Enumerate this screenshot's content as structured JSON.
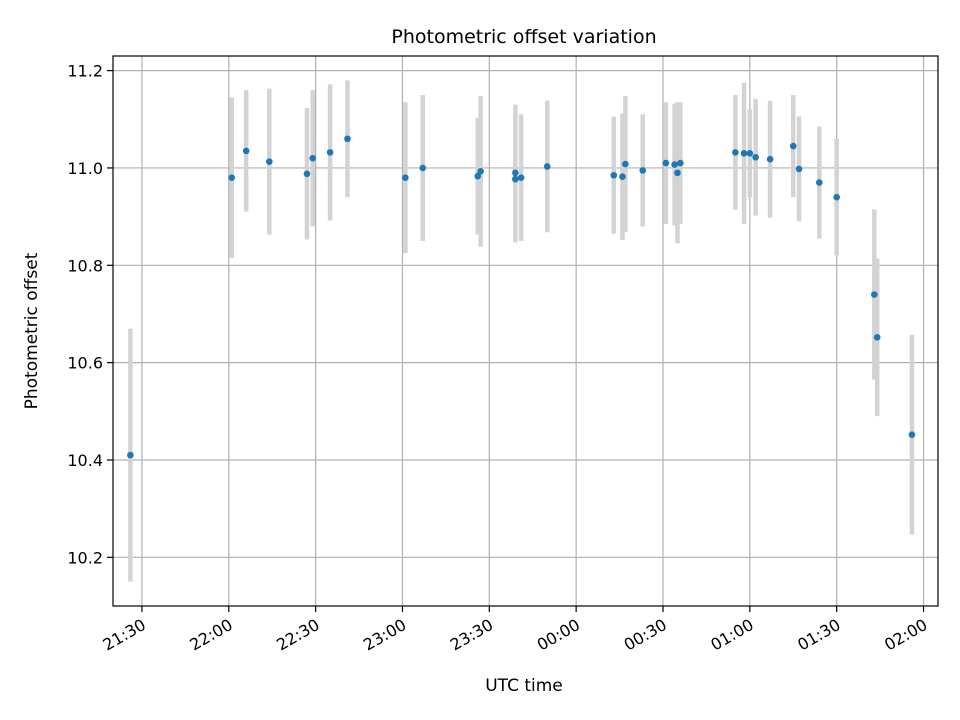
{
  "chart_data": {
    "type": "scatter",
    "title": "Photometric offset variation",
    "xlabel": "UTC time",
    "ylabel": "Photometric offset",
    "grid": true,
    "x_ticks": [
      "21:30",
      "22:00",
      "22:30",
      "23:00",
      "23:30",
      "00:00",
      "00:30",
      "01:00",
      "01:30",
      "02:00"
    ],
    "y_ticks": [
      "10.2",
      "10.4",
      "10.6",
      "10.8",
      "11.0",
      "11.2"
    ],
    "ylim": [
      10.1,
      11.23
    ],
    "xlim": [
      "21:20",
      "02:05"
    ],
    "colors": {
      "point": "#1f77b4",
      "errorbar": "#d3d3d3",
      "grid": "#b0b0b0"
    },
    "points": [
      {
        "x": "21:26",
        "y": 10.41,
        "err": 0.26
      },
      {
        "x": "22:01",
        "y": 10.98,
        "err": 0.165
      },
      {
        "x": "22:06",
        "y": 11.035,
        "err": 0.125
      },
      {
        "x": "22:14",
        "y": 11.013,
        "err": 0.15
      },
      {
        "x": "22:27",
        "y": 10.988,
        "err": 0.135
      },
      {
        "x": "22:29",
        "y": 11.02,
        "err": 0.14
      },
      {
        "x": "22:35",
        "y": 11.032,
        "err": 0.14
      },
      {
        "x": "22:41",
        "y": 11.06,
        "err": 0.12
      },
      {
        "x": "23:01",
        "y": 10.98,
        "err": 0.155
      },
      {
        "x": "23:07",
        "y": 11.0,
        "err": 0.15
      },
      {
        "x": "23:26",
        "y": 10.983,
        "err": 0.12
      },
      {
        "x": "23:27",
        "y": 10.993,
        "err": 0.155
      },
      {
        "x": "23:39",
        "y": 10.99,
        "err": 0.14
      },
      {
        "x": "23:39",
        "y": 10.977,
        "err": 0.13
      },
      {
        "x": "23:41",
        "y": 10.98,
        "err": 0.13
      },
      {
        "x": "23:50",
        "y": 11.003,
        "err": 0.135
      },
      {
        "x": "00:13",
        "y": 10.985,
        "err": 0.12
      },
      {
        "x": "00:16",
        "y": 10.982,
        "err": 0.13
      },
      {
        "x": "00:17",
        "y": 11.008,
        "err": 0.14
      },
      {
        "x": "00:23",
        "y": 10.995,
        "err": 0.115
      },
      {
        "x": "00:31",
        "y": 11.01,
        "err": 0.125
      },
      {
        "x": "00:34",
        "y": 11.007,
        "err": 0.125
      },
      {
        "x": "00:35",
        "y": 10.99,
        "err": 0.145
      },
      {
        "x": "00:36",
        "y": 11.01,
        "err": 0.125
      },
      {
        "x": "00:55",
        "y": 11.032,
        "err": 0.118
      },
      {
        "x": "00:58",
        "y": 11.03,
        "err": 0.145
      },
      {
        "x": "01:00",
        "y": 11.03,
        "err": 0.09
      },
      {
        "x": "01:02",
        "y": 11.022,
        "err": 0.12
      },
      {
        "x": "01:07",
        "y": 11.018,
        "err": 0.12
      },
      {
        "x": "01:15",
        "y": 11.045,
        "err": 0.105
      },
      {
        "x": "01:17",
        "y": 10.998,
        "err": 0.108
      },
      {
        "x": "01:24",
        "y": 10.97,
        "err": 0.115
      },
      {
        "x": "01:30",
        "y": 10.94,
        "err": 0.12
      },
      {
        "x": "01:43",
        "y": 10.74,
        "err": 0.175
      },
      {
        "x": "01:44",
        "y": 10.652,
        "err": 0.162
      },
      {
        "x": "01:56",
        "y": 10.452,
        "err": 0.205
      }
    ]
  }
}
